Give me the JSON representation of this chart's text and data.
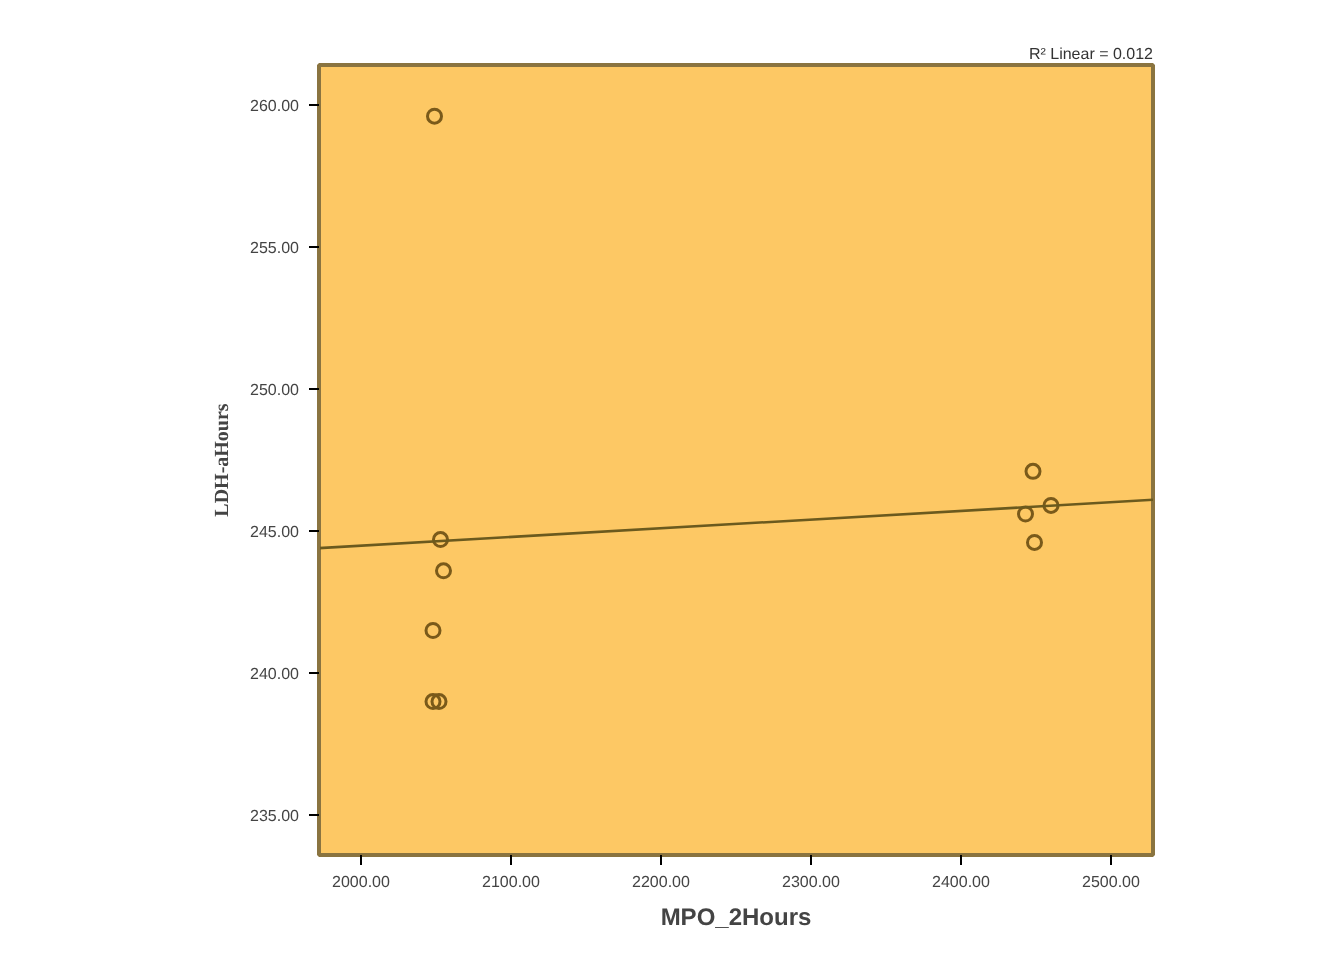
{
  "chart_data": {
    "type": "scatter",
    "xlabel": "MPO_2Hours",
    "ylabel": "LDH-aHours",
    "annotations": [
      "R² Linear = 0.012"
    ],
    "xlim": [
      1972,
      2528
    ],
    "ylim": [
      233.6,
      261.4
    ],
    "xticks": [
      {
        "value": 2000,
        "label": "2000.00"
      },
      {
        "value": 2100,
        "label": "2100.00"
      },
      {
        "value": 2200,
        "label": "2200.00"
      },
      {
        "value": 2300,
        "label": "2300.00"
      },
      {
        "value": 2400,
        "label": "2400.00"
      },
      {
        "value": 2500,
        "label": "2500.00"
      }
    ],
    "yticks": [
      {
        "value": 235,
        "label": "235.00"
      },
      {
        "value": 240,
        "label": "240.00"
      },
      {
        "value": 245,
        "label": "245.00"
      },
      {
        "value": 250,
        "label": "250.00"
      },
      {
        "value": 255,
        "label": "255.00"
      },
      {
        "value": 260,
        "label": "260.00"
      }
    ],
    "grid": false,
    "marker": "circle",
    "series": [
      {
        "color": "#7a5a1a",
        "x": [
          2049,
          2053,
          2055,
          2048,
          2048,
          2052,
          2448,
          2443,
          2460,
          2449
        ],
        "values": [
          259.6,
          244.7,
          243.6,
          241.5,
          239.0,
          239.0,
          247.1,
          245.6,
          245.9,
          244.6
        ]
      },
      {
        "type": "line",
        "color": "#6b5a1e",
        "x": [
          1972,
          2528
        ],
        "values": [
          244.4,
          246.1
        ],
        "marker": "none",
        "line_style": "solid"
      }
    ]
  }
}
